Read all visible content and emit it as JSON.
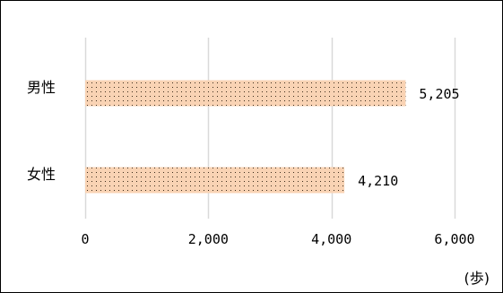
{
  "chart_data": {
    "type": "bar",
    "orientation": "horizontal",
    "categories": [
      "男性",
      "女性"
    ],
    "values": [
      5205,
      4210
    ],
    "value_labels": [
      "5,205",
      "4,210"
    ],
    "xlim": [
      0,
      6000
    ],
    "x_ticks": [
      0,
      2000,
      4000,
      6000
    ],
    "x_tick_labels": [
      "0",
      "2,000",
      "4,000",
      "6,000"
    ],
    "unit_label": "(歩)",
    "grid": "vertical",
    "legend": "none",
    "bar_style": "dotted"
  },
  "colors": {
    "bar_fill": "#f9d3b4",
    "bar_dots": "#3a2a1a",
    "grid": "#d9d9d9",
    "text": "#000000",
    "border": "#000000"
  }
}
